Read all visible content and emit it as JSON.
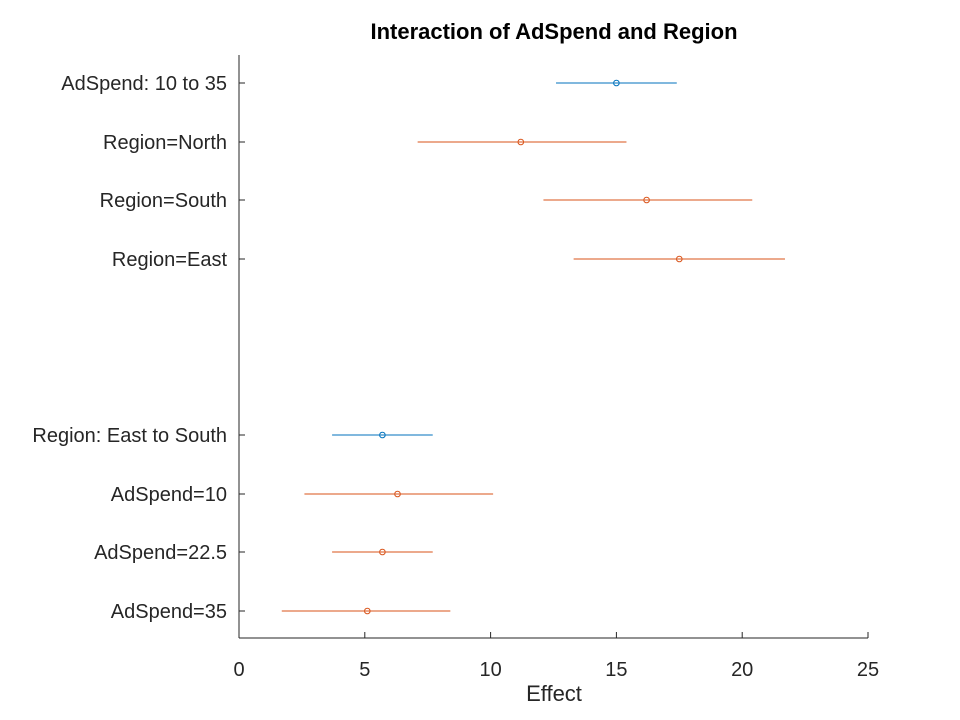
{
  "chart_data": {
    "type": "interaction-plot",
    "title": "Interaction of AdSpend and Region",
    "xlabel": "Effect",
    "xlim": [
      0,
      25
    ],
    "xticks": [
      0,
      5,
      10,
      15,
      20,
      25
    ],
    "rows": [
      {
        "label": "AdSpend: 10 to 35",
        "estimate": 15.0,
        "lower": 12.6,
        "upper": 17.4,
        "kind": "main"
      },
      {
        "label": "Region=North",
        "estimate": 11.2,
        "lower": 7.1,
        "upper": 15.4,
        "kind": "conditional"
      },
      {
        "label": "Region=South",
        "estimate": 16.2,
        "lower": 12.1,
        "upper": 20.4,
        "kind": "conditional"
      },
      {
        "label": "Region=East",
        "estimate": 17.5,
        "lower": 13.3,
        "upper": 21.7,
        "kind": "conditional"
      },
      {
        "label": "Region: East to South",
        "estimate": 5.7,
        "lower": 3.7,
        "upper": 7.7,
        "kind": "main"
      },
      {
        "label": "AdSpend=10",
        "estimate": 6.3,
        "lower": 2.6,
        "upper": 10.1,
        "kind": "conditional"
      },
      {
        "label": "AdSpend=22.5",
        "estimate": 5.7,
        "lower": 3.7,
        "upper": 7.7,
        "kind": "conditional"
      },
      {
        "label": "AdSpend=35",
        "estimate": 5.1,
        "lower": 1.7,
        "upper": 8.4,
        "kind": "conditional"
      }
    ],
    "colors": {
      "main": "#0072BD",
      "conditional": "#D95319"
    },
    "grid": false
  }
}
